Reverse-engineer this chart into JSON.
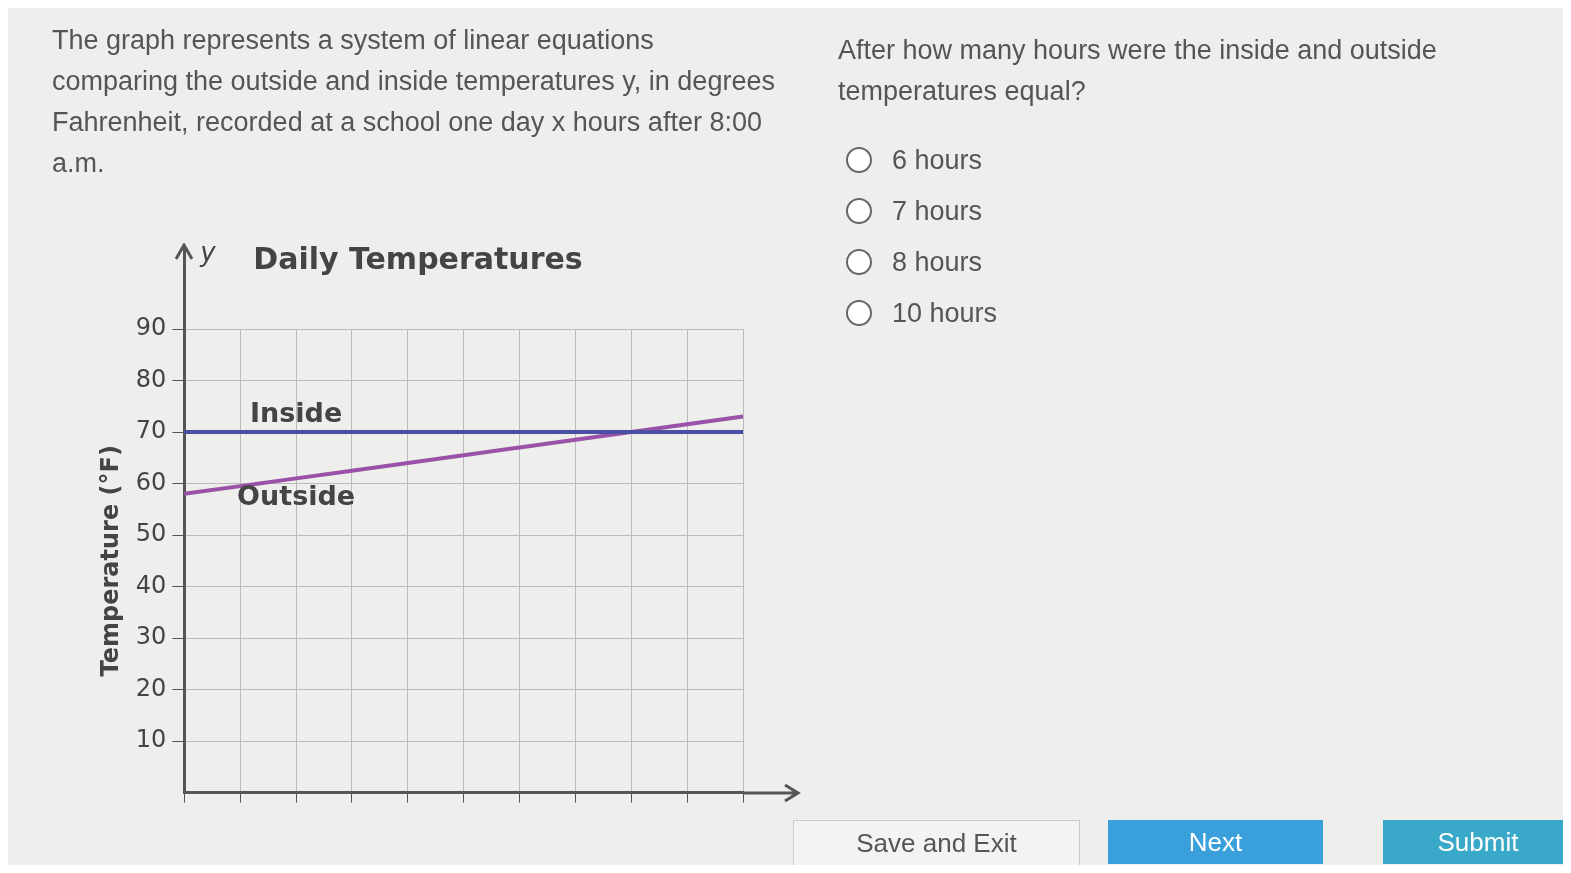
{
  "chart_data": {
    "type": "line",
    "title": "Daily Temperatures",
    "ylabel": "Temperature (°F)",
    "annotations": [
      "The graph represents a system of linear equations comparing the outside and inside temperatures y, in degrees Fahrenheit, recorded at a school one day x hours after 8:00 a.m.",
      "After how many hours were the inside and outside temperatures equal?",
      "6 hours",
      "7 hours",
      "8 hours",
      "10 hours",
      "Save and Exit",
      "Next",
      "Submit",
      "y"
    ],
    "categories": [
      null,
      null,
      null,
      null,
      null,
      null,
      null,
      null,
      null,
      null,
      null
    ],
    "series": [
      {
        "name": "Inside",
        "color": "#4a4fa3",
        "values": [
          70,
          70,
          70,
          70,
          70,
          70,
          70,
          70,
          70,
          70,
          70
        ]
      },
      {
        "name": "Outside",
        "color": "#9a52a8",
        "values": [
          58,
          59.5,
          61,
          62.5,
          64,
          65.5,
          67,
          68.5,
          70,
          71.5,
          73
        ]
      }
    ],
    "ylim": [
      0,
      90
    ],
    "yticks": [
      10,
      20,
      30,
      40,
      50,
      60,
      70,
      80,
      90
    ],
    "grid": true,
    "tick_labels": "y",
    "marker": "none",
    "line_style": "solid"
  }
}
